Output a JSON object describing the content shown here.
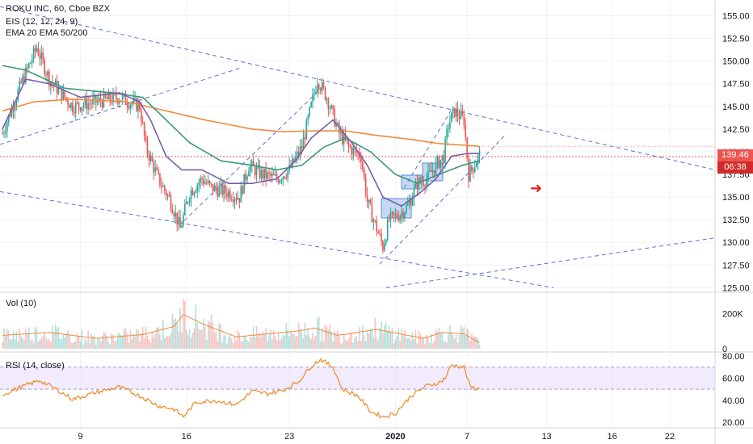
{
  "header": {
    "symbol_line": "ROKU INC, 60, Cboe BZX",
    "indicator_eis": "EIS (12, 12, 24, 9)",
    "indicator_ema": "EMA 20 EMA 50/200"
  },
  "colors": {
    "up": "#26a69a",
    "down": "#ef5350",
    "ema20": "#7b5ea7",
    "ema50": "#3a9a7a",
    "ema200": "#f08a3a",
    "trendline": "#5b6fd6",
    "box": "#5b8fd6",
    "badge_price": "#ef5350",
    "badge_time": "#d12a2a",
    "rsi_band": "#e9dcfb",
    "rsi_line": "#f08a24",
    "vol_ma": "#f08a3a"
  },
  "chart_data": [
    {
      "type": "candlestick",
      "pane": "price",
      "title": "ROKU INC, 60, Cboe BZX",
      "x_tick_labels": [
        "9",
        "16",
        "23",
        "2020",
        "7",
        "13",
        "16",
        "22"
      ],
      "y_tick_labels": [
        "155.00",
        "152.50",
        "150.00",
        "147.50",
        "145.00",
        "142.50",
        "140.00",
        "137.50",
        "135.00",
        "132.50",
        "130.00",
        "127.50",
        "125.00"
      ],
      "ylim": [
        124.5,
        156.2
      ],
      "last_price": "139.46",
      "countdown": "06:38",
      "close_anchors": [
        [
          0,
          142.0
        ],
        [
          12,
          147.5
        ],
        [
          22,
          151.5
        ],
        [
          30,
          148.0
        ],
        [
          45,
          145.0
        ],
        [
          60,
          145.5
        ],
        [
          75,
          146.0
        ],
        [
          88,
          145.0
        ],
        [
          92,
          140.5
        ],
        [
          100,
          137.0
        ],
        [
          108,
          134.5
        ],
        [
          114,
          131.5
        ],
        [
          120,
          135.5
        ],
        [
          128,
          137.0
        ],
        [
          134,
          136.0
        ],
        [
          145,
          135.5
        ],
        [
          152,
          135.0
        ],
        [
          158,
          138.5
        ],
        [
          166,
          137.5
        ],
        [
          176,
          137.0
        ],
        [
          184,
          138.0
        ],
        [
          192,
          140.5
        ],
        [
          198,
          145.0
        ],
        [
          202,
          148.0
        ],
        [
          208,
          146.0
        ],
        [
          216,
          142.0
        ],
        [
          222,
          140.5
        ],
        [
          230,
          139.5
        ],
        [
          234,
          134.5
        ],
        [
          240,
          131.5
        ],
        [
          244,
          129.5
        ],
        [
          248,
          132.5
        ],
        [
          254,
          133.0
        ],
        [
          260,
          134.0
        ],
        [
          266,
          136.5
        ],
        [
          272,
          137.0
        ],
        [
          278,
          138.5
        ],
        [
          283,
          139.5
        ],
        [
          286,
          143.0
        ],
        [
          290,
          144.5
        ],
        [
          296,
          143.5
        ],
        [
          299,
          137.5
        ],
        [
          306,
          139.6
        ]
      ],
      "ema20": [
        [
          0,
          142.5
        ],
        [
          15,
          148.0
        ],
        [
          30,
          147.5
        ],
        [
          50,
          146.0
        ],
        [
          75,
          146.5
        ],
        [
          88,
          145.5
        ],
        [
          95,
          143.5
        ],
        [
          105,
          139.5
        ],
        [
          115,
          138.0
        ],
        [
          128,
          138.0
        ],
        [
          145,
          136.5
        ],
        [
          160,
          136.5
        ],
        [
          176,
          137.0
        ],
        [
          188,
          139.0
        ],
        [
          198,
          141.5
        ],
        [
          212,
          143.5
        ],
        [
          224,
          141.0
        ],
        [
          234,
          138.5
        ],
        [
          244,
          135.0
        ],
        [
          256,
          134.0
        ],
        [
          268,
          135.5
        ],
        [
          278,
          137.0
        ],
        [
          288,
          139.5
        ],
        [
          298,
          139.8
        ],
        [
          306,
          139.8
        ]
      ],
      "ema50": [
        [
          0,
          149.5
        ],
        [
          15,
          149.0
        ],
        [
          40,
          147.0
        ],
        [
          70,
          146.5
        ],
        [
          90,
          146.0
        ],
        [
          105,
          143.5
        ],
        [
          120,
          141.0
        ],
        [
          140,
          139.0
        ],
        [
          160,
          138.5
        ],
        [
          176,
          138.0
        ],
        [
          192,
          138.5
        ],
        [
          206,
          140.5
        ],
        [
          220,
          141.5
        ],
        [
          236,
          140.0
        ],
        [
          252,
          137.5
        ],
        [
          266,
          136.5
        ],
        [
          280,
          137.5
        ],
        [
          295,
          138.5
        ],
        [
          306,
          139.0
        ]
      ],
      "ema200": [
        [
          0,
          144.5
        ],
        [
          20,
          145.5
        ],
        [
          45,
          145.8
        ],
        [
          80,
          145.5
        ],
        [
          105,
          144.5
        ],
        [
          130,
          143.5
        ],
        [
          160,
          142.5
        ],
        [
          180,
          142.2
        ],
        [
          200,
          142.3
        ],
        [
          220,
          142.3
        ],
        [
          240,
          141.8
        ],
        [
          260,
          141.4
        ],
        [
          280,
          140.9
        ],
        [
          306,
          140.6
        ]
      ]
    },
    {
      "type": "bar",
      "pane": "volume",
      "title": "Vol (10)",
      "y_tick_labels": [
        "200K",
        "0"
      ],
      "ylim": [
        0,
        300000
      ],
      "values_anchor": [
        [
          0,
          90000
        ],
        [
          30,
          110000
        ],
        [
          60,
          70000
        ],
        [
          90,
          95000
        ],
        [
          110,
          150000
        ],
        [
          116,
          230000
        ],
        [
          130,
          160000
        ],
        [
          150,
          80000
        ],
        [
          190,
          120000
        ],
        [
          200,
          140000
        ],
        [
          215,
          90000
        ],
        [
          240,
          130000
        ],
        [
          270,
          70000
        ],
        [
          282,
          110000
        ],
        [
          296,
          100000
        ],
        [
          306,
          40000
        ]
      ]
    },
    {
      "type": "line",
      "pane": "rsi",
      "title": "RSI (14, close)",
      "y_tick_labels": [
        "80.00",
        "60.00",
        "40.00",
        "20.00"
      ],
      "ylim": [
        15,
        83
      ],
      "band": [
        50,
        70
      ],
      "values_anchor": [
        [
          0,
          45
        ],
        [
          12,
          52
        ],
        [
          24,
          58
        ],
        [
          32,
          52
        ],
        [
          45,
          41
        ],
        [
          60,
          47
        ],
        [
          75,
          52
        ],
        [
          88,
          44
        ],
        [
          100,
          35
        ],
        [
          110,
          32
        ],
        [
          116,
          25
        ],
        [
          124,
          38
        ],
        [
          136,
          40
        ],
        [
          150,
          36
        ],
        [
          160,
          48
        ],
        [
          170,
          46
        ],
        [
          180,
          49
        ],
        [
          190,
          57
        ],
        [
          198,
          71
        ],
        [
          204,
          77
        ],
        [
          212,
          70
        ],
        [
          218,
          50
        ],
        [
          228,
          44
        ],
        [
          236,
          30
        ],
        [
          244,
          25
        ],
        [
          252,
          28
        ],
        [
          262,
          44
        ],
        [
          272,
          53
        ],
        [
          280,
          56
        ],
        [
          284,
          60
        ],
        [
          288,
          72
        ],
        [
          296,
          70
        ],
        [
          300,
          52
        ],
        [
          306,
          50
        ]
      ]
    }
  ]
}
